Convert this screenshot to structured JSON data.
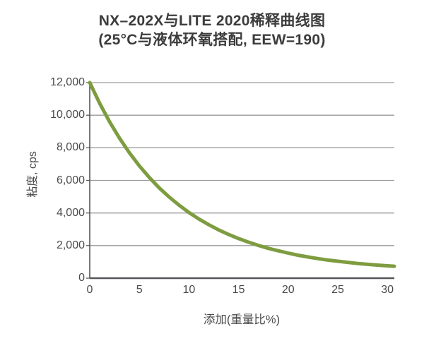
{
  "chart_data": {
    "type": "line",
    "title": "NX–202X与LITE 2020稀释曲线图",
    "subtitle": "(25°C与液体环氧搭配, EEW=190)",
    "xlabel": "添加(重量比%)",
    "ylabel": "粘度, cps",
    "xlim": [
      0,
      30.7
    ],
    "ylim": [
      0,
      12000
    ],
    "x_ticks": [
      0,
      5,
      10,
      15,
      20,
      25,
      30
    ],
    "y_ticks": [
      0,
      2000,
      4000,
      6000,
      8000,
      10000,
      12000
    ],
    "y_tick_labels": [
      "0",
      "2,000",
      "4,000",
      "6,000",
      "8,000",
      "10,000",
      "12,000"
    ],
    "grid": "horizontal",
    "legend_position": "none",
    "line_color": "#7E9C40",
    "grid_color": "#9A9A9A",
    "axis_color": "#55565A",
    "series": [
      {
        "name": "NX-202X与LITE 2020稀释曲线",
        "x": [
          0,
          1,
          2,
          3,
          4,
          5,
          6,
          7,
          8,
          9,
          10,
          11,
          12,
          13,
          14,
          15,
          16,
          17,
          18,
          19,
          20,
          21,
          22,
          23,
          24,
          25,
          26,
          27,
          28,
          29,
          30,
          30.7
        ],
        "y": [
          12000,
          10730,
          9590,
          8590,
          7690,
          6890,
          6180,
          5540,
          4980,
          4480,
          4030,
          3630,
          3280,
          2960,
          2680,
          2430,
          2210,
          2010,
          1830,
          1680,
          1540,
          1410,
          1300,
          1200,
          1110,
          1040,
          970,
          900,
          850,
          800,
          760,
          730
        ]
      }
    ]
  }
}
